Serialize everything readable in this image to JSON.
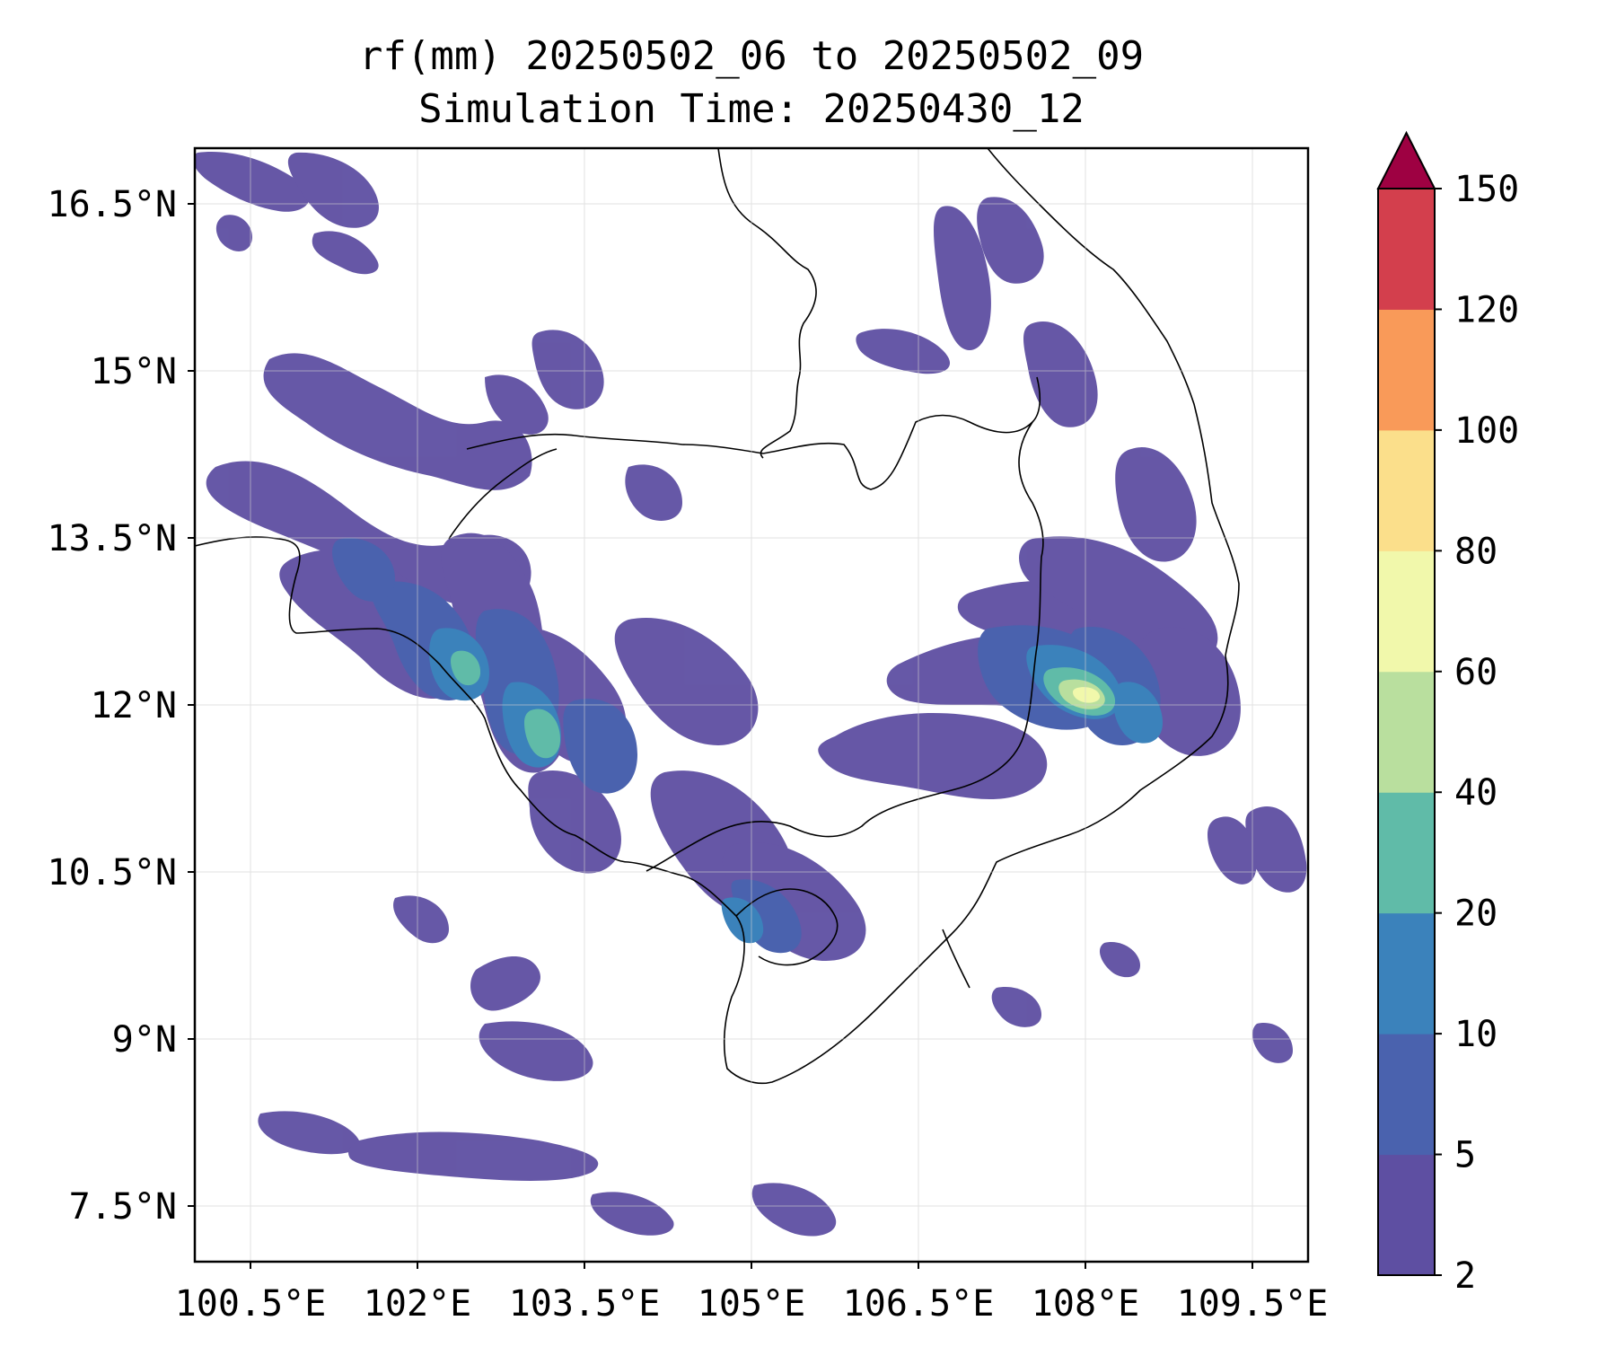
{
  "title": {
    "line1": "rf(mm) 20250502_06 to 20250502_09",
    "line2": "Simulation Time: 20250430_12"
  },
  "map": {
    "lon_range": [
      100.0,
      110.0
    ],
    "lat_range": [
      7.0,
      17.0
    ],
    "lon_ticks": [
      {
        "value": 100.5,
        "label": "100.5°E"
      },
      {
        "value": 102.0,
        "label": "102°E"
      },
      {
        "value": 103.5,
        "label": "103.5°E"
      },
      {
        "value": 105.0,
        "label": "105°E"
      },
      {
        "value": 106.5,
        "label": "106.5°E"
      },
      {
        "value": 108.0,
        "label": "108°E"
      },
      {
        "value": 109.5,
        "label": "109.5°E"
      }
    ],
    "lat_ticks": [
      {
        "value": 7.5,
        "label": "7.5°N"
      },
      {
        "value": 9.0,
        "label": "9°N"
      },
      {
        "value": 10.5,
        "label": "10.5°N"
      },
      {
        "value": 12.0,
        "label": "12°N"
      },
      {
        "value": 13.5,
        "label": "13.5°N"
      },
      {
        "value": 15.0,
        "label": "15°N"
      },
      {
        "value": 16.5,
        "label": "16.5°N"
      }
    ],
    "gridlines": true,
    "variable": "rf",
    "units": "mm"
  },
  "colorbar": {
    "levels": [
      2,
      5,
      10,
      20,
      40,
      60,
      80,
      100,
      120,
      150
    ],
    "labels": [
      "2",
      "5",
      "10",
      "20",
      "40",
      "60",
      "80",
      "100",
      "120",
      "150"
    ],
    "colors": [
      "#5e4fa2",
      "#4a62ae",
      "#3b82bb",
      "#60bba8",
      "#b9df9e",
      "#f1f8ab",
      "#fbdf8b",
      "#f99a59",
      "#d33f4d"
    ],
    "extend_color": "#9e0142",
    "extend": "max"
  }
}
